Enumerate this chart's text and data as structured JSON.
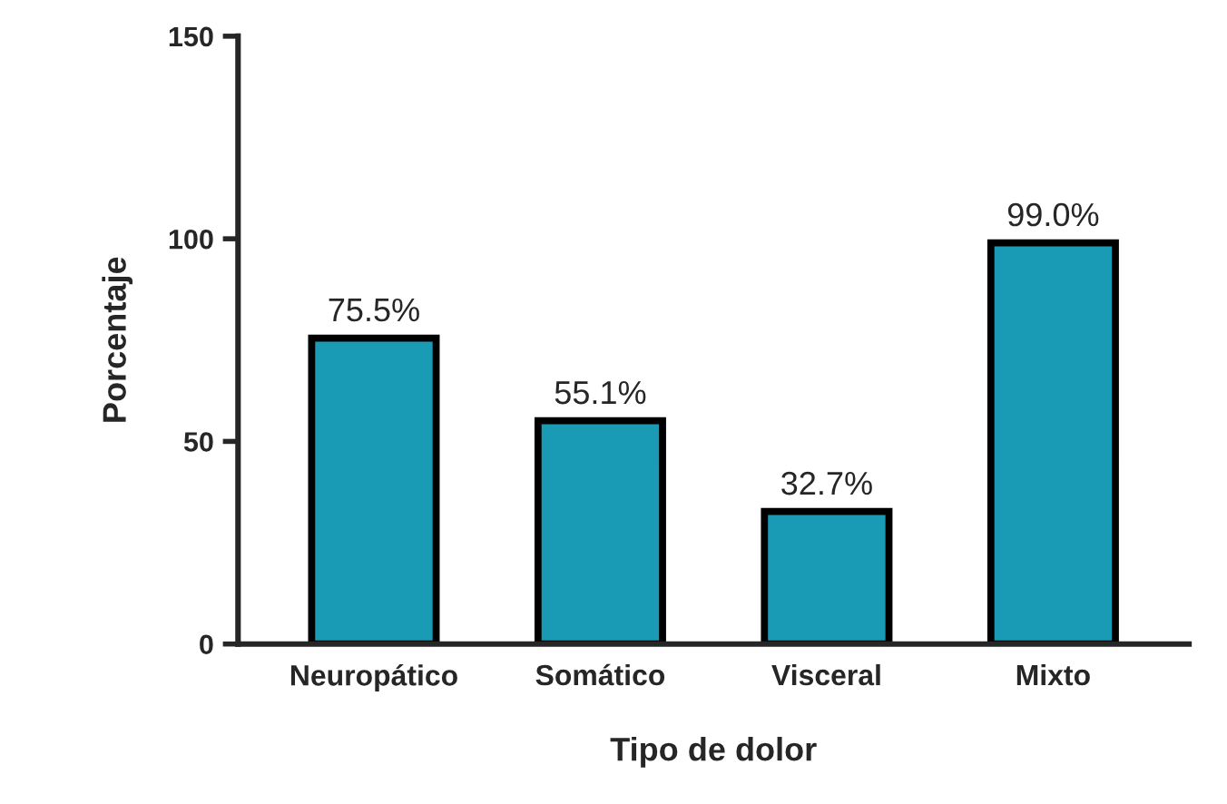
{
  "chart_data": {
    "type": "bar",
    "xlabel": "Tipo de dolor",
    "ylabel": "Porcentaje",
    "categories": [
      "Neuropático",
      "Somático",
      "Visceral",
      "Mixto"
    ],
    "values": [
      75.5,
      55.1,
      32.7,
      99.0
    ],
    "value_labels": [
      "75.5%",
      "55.1%",
      "32.7%",
      "99.0%"
    ],
    "color": "#1a9bb5",
    "ylim": [
      0,
      150
    ],
    "yticks": [
      0,
      50,
      100,
      150
    ],
    "grid": false,
    "legend": false
  }
}
